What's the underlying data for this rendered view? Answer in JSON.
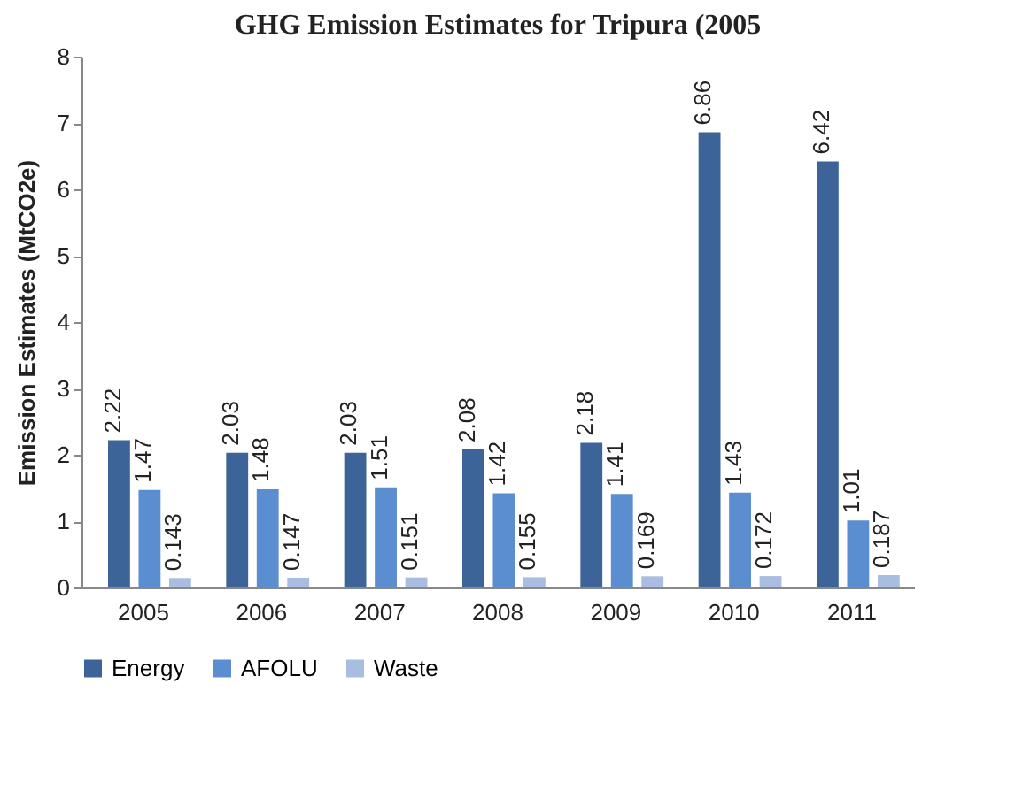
{
  "chart_data": {
    "type": "bar",
    "title": "GHG Emission Estimates for Tripura (2005",
    "ylabel": "Emission Estimates (MtCO2e)",
    "categories": [
      "2005",
      "2006",
      "2007",
      "2008",
      "2009",
      "2010",
      "2011"
    ],
    "series": [
      {
        "name": "Energy",
        "color": "#3c6499",
        "values": [
          2.22,
          2.03,
          2.03,
          2.08,
          2.18,
          6.86,
          6.42
        ]
      },
      {
        "name": "AFOLU",
        "color": "#5b8ed0",
        "values": [
          1.47,
          1.48,
          1.51,
          1.42,
          1.41,
          1.43,
          1.01
        ]
      },
      {
        "name": "Waste",
        "color": "#a9bde0",
        "values": [
          0.143,
          0.147,
          0.151,
          0.155,
          0.169,
          0.172,
          0.187
        ]
      }
    ],
    "ylim": [
      0,
      8
    ],
    "yticks": [
      0,
      1,
      2,
      3,
      4,
      5,
      6,
      7,
      8
    ],
    "grid": false,
    "legend": "bottom",
    "data_labels": true
  }
}
